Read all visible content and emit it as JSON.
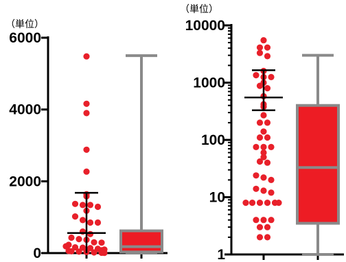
{
  "colors": {
    "dot": "#e8202a",
    "box_fill": "#ed1c24",
    "box_stroke": "#8a8a8a",
    "axis": "#000000"
  },
  "chart_data": [
    {
      "type": "scatter",
      "scale": "linear",
      "unit_label": "（単位）",
      "ylim": [
        0,
        6000
      ],
      "y_ticks": [
        {
          "value": 0,
          "label": "0"
        },
        {
          "value": 2000,
          "label": "2000"
        },
        {
          "value": 4000,
          "label": "4000"
        },
        {
          "value": 6000,
          "label": "6000"
        }
      ],
      "dot_plot": {
        "values": [
          5480,
          4160,
          3900,
          2880,
          2270,
          1640,
          1580,
          1370,
          1340,
          1340,
          1290,
          1180,
          1020,
          920,
          850,
          850,
          600,
          530,
          430,
          390,
          370,
          300,
          290,
          230,
          190,
          160,
          150,
          140,
          120,
          100,
          80,
          60,
          50,
          40,
          30,
          20,
          10,
          5
        ],
        "mean": 560,
        "sd_upper": 1680,
        "sd_lower": 0
      },
      "box_plot": {
        "min": 0,
        "q1": 30,
        "median": 180,
        "q3": 620,
        "max": 5500
      }
    },
    {
      "type": "scatter",
      "scale": "log",
      "unit_label": "（単位）",
      "ylim": [
        1,
        10000
      ],
      "y_ticks": [
        {
          "value": 1,
          "label": "1"
        },
        {
          "value": 10,
          "label": "10"
        },
        {
          "value": 100,
          "label": "100"
        },
        {
          "value": 1000,
          "label": "1000"
        },
        {
          "value": 10000,
          "label": "10000"
        }
      ],
      "dot_plot": {
        "values": [
          5500,
          4100,
          4100,
          3300,
          2900,
          1600,
          1350,
          1250,
          1250,
          1000,
          880,
          800,
          580,
          420,
          380,
          270,
          200,
          200,
          140,
          110,
          110,
          75,
          75,
          75,
          60,
          50,
          42,
          40,
          24,
          22,
          20,
          14,
          13,
          12,
          8,
          8,
          8,
          8,
          8,
          8,
          4,
          4,
          4,
          3,
          3,
          2,
          2
        ],
        "mean": 550,
        "sd_upper": 1650,
        "sd_lower": 330
      },
      "box_plot": {
        "min": 1,
        "q1": 3.5,
        "median": 33,
        "q3": 400,
        "max": 3000
      }
    }
  ]
}
